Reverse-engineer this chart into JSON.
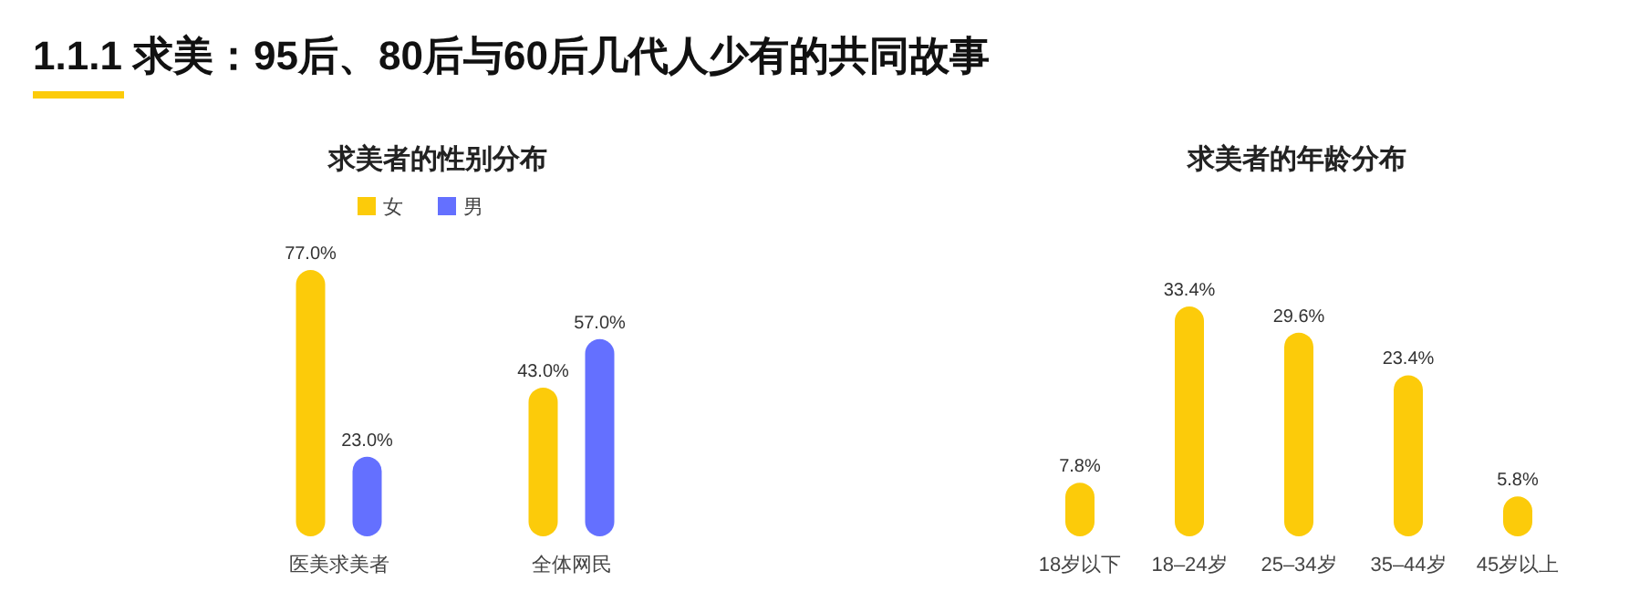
{
  "chart_data": [
    {
      "type": "bar",
      "title": "求美者的性别分布",
      "annotations": [
        "1.1.1 求美：95后、80后与60后几代人少有的共同故事"
      ],
      "categories": [
        "医美求美者",
        "全体网民"
      ],
      "series": [
        {
          "name": "女",
          "color": "#fccb0a",
          "values": [
            77.0,
            43.0
          ],
          "value_labels": [
            "77.0%",
            "43.0%"
          ]
        },
        {
          "name": "男",
          "color": "#6470ff",
          "values": [
            23.0,
            57.0
          ],
          "value_labels": [
            "23.0%",
            "57.0%"
          ]
        }
      ],
      "legend": "top"
    },
    {
      "type": "bar",
      "title": "求美者的年龄分布",
      "categories": [
        "18岁以下",
        "18–24岁",
        "25–34岁",
        "35–44岁",
        "45岁以上"
      ],
      "series": [
        {
          "color": "#fccb0a",
          "values": [
            7.8,
            33.4,
            29.6,
            23.4,
            5.8
          ],
          "value_labels": [
            "7.8%",
            "33.4%",
            "29.6%",
            "23.4%",
            "5.8%"
          ]
        }
      ]
    }
  ]
}
